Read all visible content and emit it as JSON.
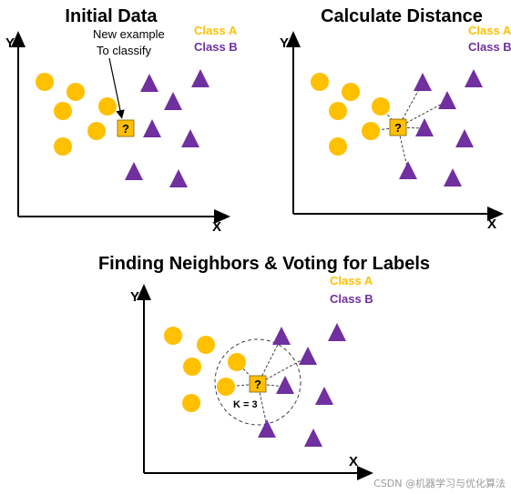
{
  "colors": {
    "class_a": "#FFC000",
    "class_b": "#7030A0",
    "axis": "#000000",
    "query_fill": "#FFC000",
    "query_stroke": "#7F6000",
    "dash": "#404040"
  },
  "icons": {
    "class_a_marker": "circle",
    "class_b_marker": "triangle",
    "query_marker": "square-question"
  },
  "panels": {
    "initial": {
      "title": "Initial Data",
      "x_axis": "X",
      "y_axis": "Y",
      "legend_a": "Class A",
      "legend_b": "Class B",
      "annotation_line1": "New example",
      "annotation_line2": "To classify",
      "query_label": "?"
    },
    "distance": {
      "title": "Calculate Distance",
      "x_axis": "X",
      "y_axis": "Y",
      "legend_a": "Class A",
      "legend_b": "Class B",
      "query_label": "?"
    },
    "neighbors": {
      "title": "Finding Neighbors & Voting for Labels",
      "x_axis": "X",
      "y_axis": "Y",
      "legend_a": "Class A",
      "legend_b": "Class B",
      "query_label": "?",
      "k_label": "K = 3"
    }
  },
  "watermark": "CSDN @机器学习与优化算法"
}
